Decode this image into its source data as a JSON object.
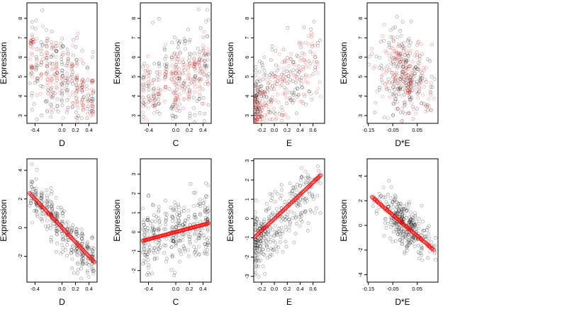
{
  "colors": {
    "black_points": "#000000",
    "red_points": "#ff0000",
    "background": "#ffffff"
  },
  "chart_data": [
    {
      "type": "scatter",
      "xlabel": "D",
      "ylabel": "Expression",
      "xlim": [
        -0.52,
        0.52
      ],
      "ylim": [
        2.6,
        8.8
      ],
      "xticks": [
        "-0.4",
        "0.0",
        "0.2",
        "0.4"
      ],
      "xtick_values": [
        -0.4,
        0.0,
        0.2,
        0.4
      ],
      "yticks": [
        "3",
        "4",
        "5",
        "6",
        "7",
        "8"
      ],
      "ytick_values": [
        3,
        4,
        5,
        6,
        7,
        8
      ],
      "gen": {
        "kind": "cluster",
        "seed": 11,
        "n": 380,
        "xmin": -0.48,
        "xmax": 0.48,
        "cluster_centers": [
          -0.45,
          -0.38,
          -0.3,
          -0.22,
          -0.15,
          -0.08,
          0.0,
          0.08,
          0.15,
          0.22,
          0.3,
          0.38,
          0.45
        ],
        "base": 5.0,
        "slope": -2.0,
        "spread": 1.3,
        "red_frac": 0.45,
        "red_base": 5.0,
        "red_slope": -2.4,
        "red_spread": 0.9
      }
    },
    {
      "type": "scatter",
      "xlabel": "C",
      "ylabel": "Expression",
      "xlim": [
        -0.52,
        0.52
      ],
      "ylim": [
        2.6,
        8.8
      ],
      "xticks": [
        "-0.4",
        "0.0",
        "0.2",
        "0.4"
      ],
      "xtick_values": [
        -0.4,
        0.0,
        0.2,
        0.4
      ],
      "yticks": [
        "3",
        "4",
        "5",
        "6",
        "7",
        "8"
      ],
      "ytick_values": [
        3,
        4,
        5,
        6,
        7,
        8
      ],
      "gen": {
        "kind": "cluster",
        "seed": 23,
        "n": 380,
        "xmin": -0.48,
        "xmax": 0.48,
        "cluster_centers": [
          -0.47,
          -0.4,
          -0.32,
          -0.25,
          -0.15,
          -0.05,
          0.0,
          0.05,
          0.12,
          0.2,
          0.28,
          0.35,
          0.42,
          0.47
        ],
        "base": 4.9,
        "slope": 1.2,
        "spread": 1.3,
        "red_frac": 0.45,
        "red_base": 4.8,
        "red_slope": 1.5,
        "red_spread": 0.9
      }
    },
    {
      "type": "scatter",
      "xlabel": "E",
      "ylabel": "Expression",
      "xlim": [
        -0.32,
        0.78
      ],
      "ylim": [
        2.6,
        8.8
      ],
      "xticks": [
        "-0.2",
        "0.0",
        "0.2",
        "0.4",
        "0.6"
      ],
      "xtick_values": [
        -0.2,
        0.0,
        0.2,
        0.4,
        0.6
      ],
      "yticks": [
        "3",
        "4",
        "5",
        "6",
        "7",
        "8"
      ],
      "ytick_values": [
        3,
        4,
        5,
        6,
        7,
        8
      ],
      "gen": {
        "kind": "skew",
        "seed": 37,
        "n": 380,
        "xmin": -0.3,
        "xmax": 0.72,
        "base": 4.3,
        "slope": 2.6,
        "spread": 1.1,
        "red_frac": 0.45,
        "red_base": 4.2,
        "red_slope": 2.8,
        "red_spread": 0.8
      }
    },
    {
      "type": "scatter",
      "xlabel": "D*E",
      "ylabel": "Expression",
      "xlim": [
        -0.155,
        0.135
      ],
      "ylim": [
        2.6,
        8.8
      ],
      "xticks": [
        "-0.15",
        "-0.05",
        "0.05"
      ],
      "xtick_values": [
        -0.15,
        -0.05,
        0.05
      ],
      "yticks": [
        "3",
        "4",
        "5",
        "6",
        "7",
        "8"
      ],
      "ytick_values": [
        3,
        4,
        5,
        6,
        7,
        8
      ],
      "gen": {
        "kind": "center",
        "seed": 41,
        "n": 380,
        "xmin": -0.15,
        "xmax": 0.125,
        "center": 0.0,
        "width": 0.04,
        "base": 5.0,
        "slope": -6.0,
        "spread": 1.3,
        "red_frac": 0.45,
        "red_base": 5.0,
        "red_slope": -6.0,
        "red_spread": 1.0
      }
    },
    {
      "type": "scatter",
      "xlabel": "D",
      "ylabel": "Expression",
      "xlim": [
        -0.52,
        0.52
      ],
      "ylim": [
        -3.8,
        4.8
      ],
      "xticks": [
        "-0.4",
        "0.0",
        "0.2",
        "0.4"
      ],
      "xtick_values": [
        -0.4,
        0.0,
        0.2,
        0.4
      ],
      "yticks": [
        "-2",
        "0",
        "2",
        "4"
      ],
      "ytick_values": [
        -2,
        0,
        2,
        4
      ],
      "gen": {
        "kind": "cluster",
        "seed": 53,
        "n": 330,
        "xmin": -0.48,
        "xmax": 0.48,
        "cluster_centers": [
          -0.45,
          -0.38,
          -0.3,
          -0.22,
          -0.15,
          -0.08,
          0.0,
          0.08,
          0.15,
          0.22,
          0.3,
          0.38,
          0.45
        ],
        "base": 0.0,
        "slope": -5.0,
        "spread": 0.8,
        "red_frac": 0.0
      },
      "fit_line": {
        "x": [
          -0.48,
          0.48
        ],
        "y": [
          2.4,
          -2.4
        ],
        "n_points": 60
      }
    },
    {
      "type": "scatter",
      "xlabel": "C",
      "ylabel": "Expression",
      "xlim": [
        -0.52,
        0.52
      ],
      "ylim": [
        -2.6,
        3.8
      ],
      "xticks": [
        "-0.4",
        "0.0",
        "0.2",
        "0.4"
      ],
      "xtick_values": [
        -0.4,
        0.0,
        0.2,
        0.4
      ],
      "yticks": [
        "-2",
        "-1",
        "0",
        "1",
        "2",
        "3"
      ],
      "ytick_values": [
        -2,
        -1,
        0,
        1,
        2,
        3
      ],
      "gen": {
        "kind": "cluster",
        "seed": 67,
        "n": 330,
        "xmin": -0.48,
        "xmax": 0.48,
        "cluster_centers": [
          -0.47,
          -0.4,
          -0.32,
          -0.25,
          -0.15,
          -0.05,
          0.0,
          0.05,
          0.12,
          0.2,
          0.28,
          0.35,
          0.42,
          0.47
        ],
        "base": 0.0,
        "slope": 0.9,
        "spread": 0.85,
        "red_frac": 0.0
      },
      "fit_line": {
        "x": [
          -0.48,
          0.48
        ],
        "y": [
          -0.45,
          0.45
        ],
        "n_points": 60
      }
    },
    {
      "type": "scatter",
      "xlabel": "E",
      "ylabel": "Expression",
      "xlim": [
        -0.32,
        0.78
      ],
      "ylim": [
        -3.3,
        3.1
      ],
      "xticks": [
        "-0.2",
        "0.0",
        "0.2",
        "0.4",
        "0.6"
      ],
      "xtick_values": [
        -0.2,
        0.0,
        0.2,
        0.4,
        0.6
      ],
      "yticks": [
        "-3",
        "-2",
        "-1",
        "0",
        "1",
        "2",
        "3"
      ],
      "ytick_values": [
        -3,
        -2,
        -1,
        0,
        1,
        2,
        3
      ],
      "gen": {
        "kind": "skew",
        "seed": 79,
        "n": 330,
        "xmin": -0.3,
        "xmax": 0.72,
        "base": -0.3,
        "slope": 3.1,
        "spread": 0.8,
        "red_frac": 0.0
      },
      "fit_line": {
        "x": [
          -0.3,
          0.72
        ],
        "y": [
          -0.95,
          2.25
        ],
        "n_points": 60
      }
    },
    {
      "type": "scatter",
      "xlabel": "D*E",
      "ylabel": "Expression",
      "xlim": [
        -0.155,
        0.135
      ],
      "ylim": [
        -4.6,
        5.4
      ],
      "xticks": [
        "-0.15",
        "-0.05",
        "0.05"
      ],
      "xtick_values": [
        -0.15,
        -0.05,
        0.05
      ],
      "yticks": [
        "-4",
        "-2",
        "0",
        "2",
        "4"
      ],
      "ytick_values": [
        -4,
        -2,
        0,
        2,
        4
      ],
      "gen": {
        "kind": "center",
        "seed": 97,
        "n": 330,
        "xmin": -0.15,
        "xmax": 0.125,
        "center": 0.0,
        "width": 0.045,
        "base": 0.0,
        "slope": -17.0,
        "spread": 0.9,
        "red_frac": 0.0
      },
      "fit_line": {
        "x": [
          -0.135,
          0.118
        ],
        "y": [
          2.3,
          -2.0
        ],
        "n_points": 60
      }
    }
  ]
}
